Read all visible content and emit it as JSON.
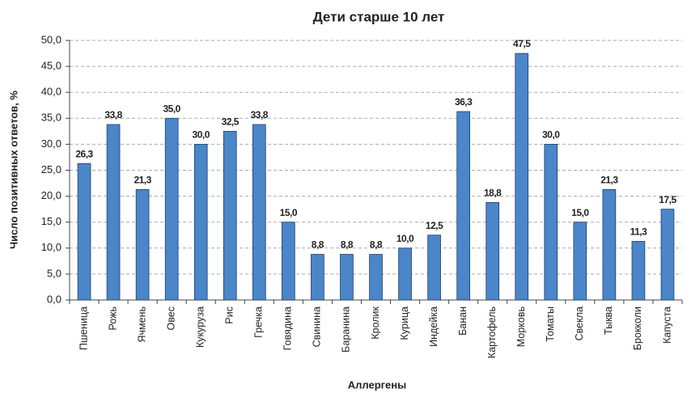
{
  "chart_data": {
    "type": "bar",
    "title": "Дети старше 10 лет",
    "x_label": "Аллергены",
    "y_label": "Число позитивных ответов, %",
    "categories": [
      "Пшеница",
      "Рожь",
      "Ячмень",
      "Овес",
      "Кукуруза",
      "Рис",
      "Гречка",
      "Говядина",
      "Свинина",
      "Баранина",
      "Кролик",
      "Курица",
      "Индейка",
      "Банан",
      "Картофель",
      "Морковь",
      "Томаты",
      "Свекла",
      "Тыква",
      "Брокколи",
      "Капуста"
    ],
    "values": [
      26.3,
      33.8,
      21.3,
      35.0,
      30.0,
      32.5,
      33.8,
      15.0,
      8.8,
      8.8,
      8.8,
      10.0,
      12.5,
      36.3,
      18.8,
      47.5,
      30.0,
      15.0,
      21.3,
      11.3,
      17.5
    ],
    "value_labels": [
      "26,3",
      "33,8",
      "21,3",
      "35,0",
      "30,0",
      "32,5",
      "33,8",
      "15,0",
      "8,8",
      "8,8",
      "8,8",
      "10,0",
      "12,5",
      "36,3",
      "18,8",
      "47,5",
      "30,0",
      "15,0",
      "21,3",
      "11,3",
      "17,5"
    ],
    "color": "#4a86c8",
    "ylim": [
      0,
      50
    ],
    "yticks": [
      {
        "value": 0,
        "label": "0,0"
      },
      {
        "value": 5,
        "label": "5,0"
      },
      {
        "value": 10,
        "label": "10,0"
      },
      {
        "value": 15,
        "label": "15,0"
      },
      {
        "value": 20,
        "label": "20,0"
      },
      {
        "value": 25,
        "label": "25,0"
      },
      {
        "value": 30,
        "label": "30,0"
      },
      {
        "value": 35,
        "label": "35,0"
      },
      {
        "value": 40,
        "label": "40,0"
      },
      {
        "value": 45,
        "label": "45,0"
      },
      {
        "value": 50,
        "label": "50,0"
      }
    ],
    "grid": true
  }
}
